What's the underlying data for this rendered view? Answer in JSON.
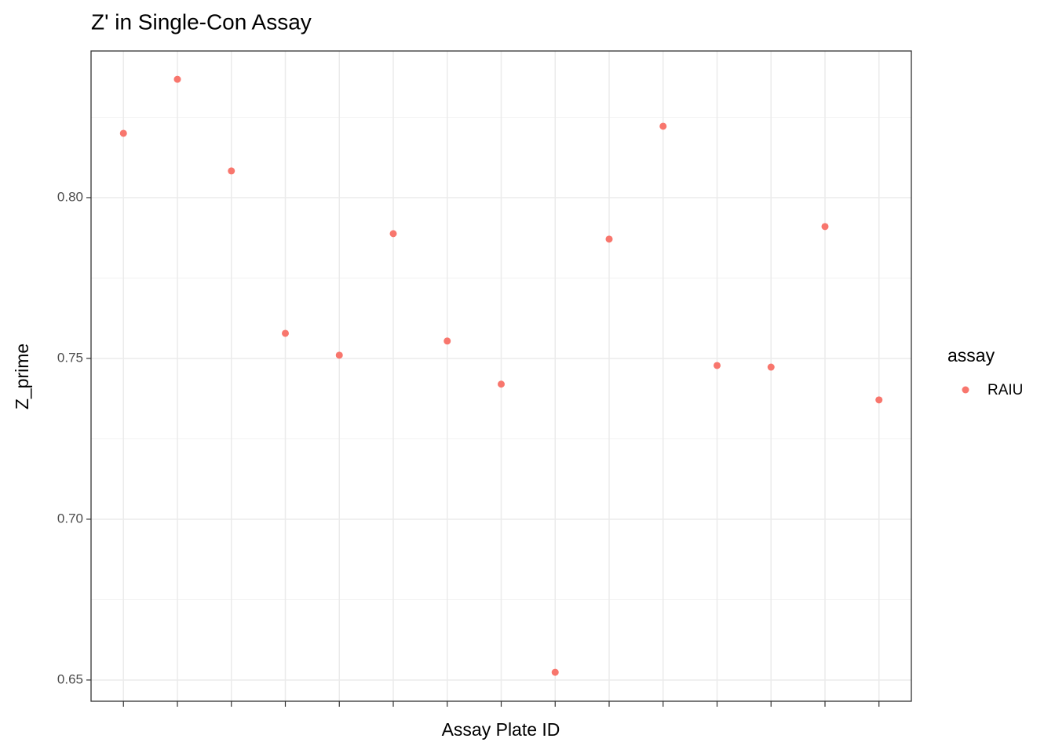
{
  "chart_data": {
    "type": "scatter",
    "title": "Z' in Single-Con Assay",
    "x_label": "Assay Plate ID",
    "y_label": "Z_prime",
    "legend_title": "assay",
    "legend_position": "right",
    "categories": [
      null,
      null,
      null,
      null,
      null,
      null,
      null,
      null,
      null,
      null,
      null,
      null,
      null,
      null,
      null
    ],
    "series": [
      {
        "name": "RAIU",
        "color": "#F8766D",
        "values": [
          0.82,
          0.8368,
          0.8083,
          0.7578,
          0.751,
          0.7888,
          0.7554,
          0.742,
          0.6524,
          0.7871,
          0.8222,
          0.7478,
          0.7473,
          0.791,
          0.7371
        ]
      }
    ],
    "ylim": [
      0.6434,
      0.8456
    ],
    "yticks": [
      0.65,
      0.7,
      0.75,
      0.8
    ],
    "yminor": [
      0.675,
      0.725,
      0.775,
      0.825
    ],
    "yticks_labels": [
      "0.65",
      "0.70",
      "0.75",
      "0.80"
    ],
    "grid": true
  }
}
